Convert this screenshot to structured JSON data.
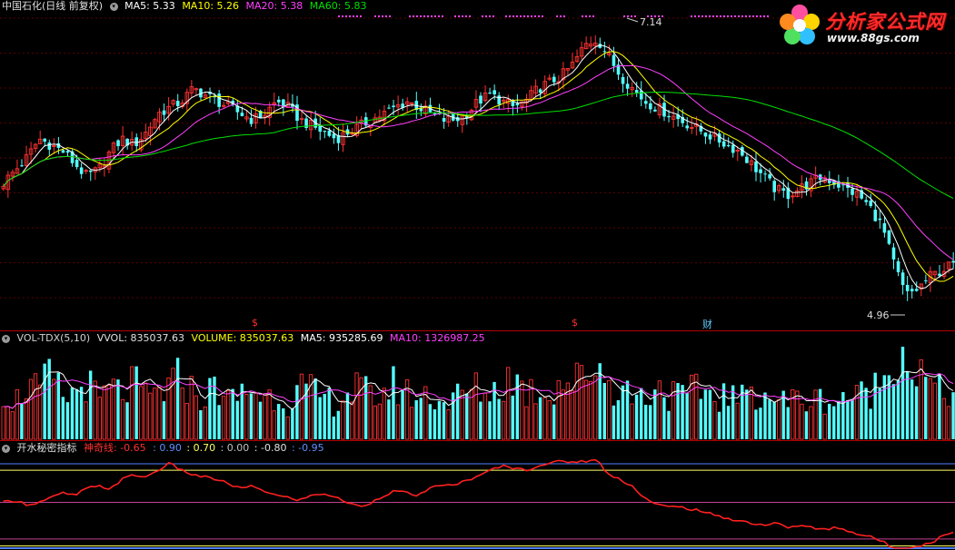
{
  "price_header": {
    "title": "中国石化(日线 前复权)",
    "ma5": "MA5: 5.33",
    "ma10": "MA10: 5.26",
    "ma20": "MA20: 5.38",
    "ma60": "MA60: 5.83"
  },
  "volume_header": {
    "title": "VOL-TDX(5,10)",
    "vvol": "VVOL: 835037.63",
    "volume": "VOLUME: 835037.63",
    "ma5": "MA5: 935285.69",
    "ma10": "MA10: 1326987.25"
  },
  "indicator_header": {
    "title": "开水秘密指标",
    "line": "神奇线: -0.65",
    "v1": ": 0.90",
    "v2": ": 0.70",
    "v3": ": 0.00",
    "v4": ": -0.80",
    "v5": ": -0.95"
  },
  "logo": {
    "main": "分析家公式网",
    "sub": "www.88gs.com"
  },
  "markers": {
    "s1": "$",
    "s2": "$",
    "cai": "财"
  },
  "colors": {
    "up": "#ff3232",
    "down": "#54ffff",
    "ma5": "#ffffff",
    "ma10": "#ffff00",
    "ma20": "#ff40ff",
    "ma60": "#00e000",
    "indicator": "#ff2020",
    "level_blue": "#4f7fff",
    "level_yellow": "#ffff60",
    "level_magenta": "#c0408f"
  },
  "chart_data": [
    {
      "type": "candlestick",
      "title": "中国石化(日线 前复权)",
      "annotations": [
        {
          "label": "7.14",
          "kind": "period-high"
        },
        {
          "label": "4.96",
          "kind": "period-low"
        }
      ],
      "ylim": [
        4.8,
        7.3
      ],
      "close_series_approx": [
        5.95,
        6.05,
        6.15,
        6.3,
        6.25,
        6.2,
        6.1,
        6.0,
        6.05,
        6.2,
        6.3,
        6.25,
        6.35,
        6.5,
        6.55,
        6.6,
        6.7,
        6.65,
        6.6,
        6.55,
        6.5,
        6.45,
        6.5,
        6.6,
        6.55,
        6.45,
        6.4,
        6.35,
        6.3,
        6.35,
        6.4,
        6.45,
        6.5,
        6.55,
        6.6,
        6.55,
        6.5,
        6.45,
        6.45,
        6.5,
        6.6,
        6.65,
        6.6,
        6.55,
        6.6,
        6.7,
        6.75,
        6.8,
        6.9,
        7.05,
        7.1,
        6.95,
        6.8,
        6.7,
        6.6,
        6.55,
        6.5,
        6.45,
        6.4,
        6.35,
        6.3,
        6.25,
        6.2,
        6.1,
        6.0,
        5.9,
        5.85,
        5.9,
        5.95,
        6.0,
        5.95,
        5.9,
        5.85,
        5.75,
        5.6,
        5.3,
        5.05,
        5.1,
        5.2,
        5.25,
        5.3
      ],
      "series": [
        {
          "name": "MA5",
          "last": 5.33
        },
        {
          "name": "MA10",
          "last": 5.26
        },
        {
          "name": "MA20",
          "last": 5.38
        },
        {
          "name": "MA60",
          "last": 5.83
        }
      ]
    },
    {
      "type": "bar",
      "title": "VOL-TDX(5,10)",
      "volume_series_approx": [
        0.55,
        0.4,
        0.6,
        0.5,
        0.7,
        0.45,
        0.5,
        0.65,
        0.4,
        0.55,
        0.5,
        0.6,
        0.45,
        0.5,
        0.55,
        0.7,
        0.5,
        0.45,
        0.6,
        0.4,
        0.5,
        0.55,
        0.45,
        0.5,
        0.4,
        0.55,
        0.5,
        0.45,
        0.4,
        0.5,
        0.55,
        0.45,
        0.5,
        0.6,
        0.5,
        0.45,
        0.5,
        0.4,
        0.45,
        0.5,
        0.55,
        0.5,
        0.6,
        0.7,
        0.5,
        0.55,
        0.5,
        0.65,
        0.6,
        0.7,
        0.85,
        0.6,
        0.55,
        0.5,
        0.45,
        0.6,
        0.5,
        0.45,
        0.5,
        0.55,
        0.45,
        0.5,
        0.4,
        0.55,
        0.5,
        0.45,
        0.4,
        0.45,
        0.4,
        0.45,
        0.4,
        0.5,
        0.45,
        0.55,
        0.6,
        1.0,
        0.9,
        0.7,
        0.6,
        0.5,
        0.5
      ],
      "series": [
        {
          "name": "VVOL",
          "last": 835037.63
        },
        {
          "name": "VOLUME",
          "last": 835037.63
        },
        {
          "name": "MA5",
          "last": 935285.69
        },
        {
          "name": "MA10",
          "last": 1326987.25
        }
      ]
    },
    {
      "type": "line",
      "title": "开水秘密指标",
      "levels": [
        0.9,
        0.7,
        0.0,
        -0.8,
        -0.95
      ],
      "ylim": [
        -1.0,
        1.0
      ],
      "series": [
        {
          "name": "神奇线",
          "values": [
            0.0,
            0.05,
            -0.05,
            0.0,
            0.1,
            0.2,
            0.15,
            0.3,
            0.35,
            0.3,
            0.5,
            0.6,
            0.55,
            0.7,
            0.85,
            0.7,
            0.6,
            0.55,
            0.5,
            0.4,
            0.3,
            0.35,
            0.25,
            0.15,
            0.1,
            0.05,
            0.15,
            0.2,
            0.1,
            0.0,
            -0.1,
            0.0,
            0.15,
            0.25,
            0.2,
            0.15,
            0.3,
            0.4,
            0.35,
            0.5,
            0.55,
            0.7,
            0.8,
            0.75,
            0.7,
            0.8,
            0.85,
            0.9,
            0.88,
            0.9,
            0.92,
            0.6,
            0.5,
            0.35,
            0.1,
            -0.05,
            -0.1,
            -0.1,
            -0.15,
            -0.2,
            -0.3,
            -0.35,
            -0.4,
            -0.45,
            -0.5,
            -0.45,
            -0.55,
            -0.5,
            -0.55,
            -0.6,
            -0.55,
            -0.6,
            -0.7,
            -0.75,
            -0.85,
            -1.0,
            -1.0,
            -0.95,
            -0.9,
            -0.75,
            -0.65
          ],
          "last": -0.65
        }
      ]
    }
  ]
}
